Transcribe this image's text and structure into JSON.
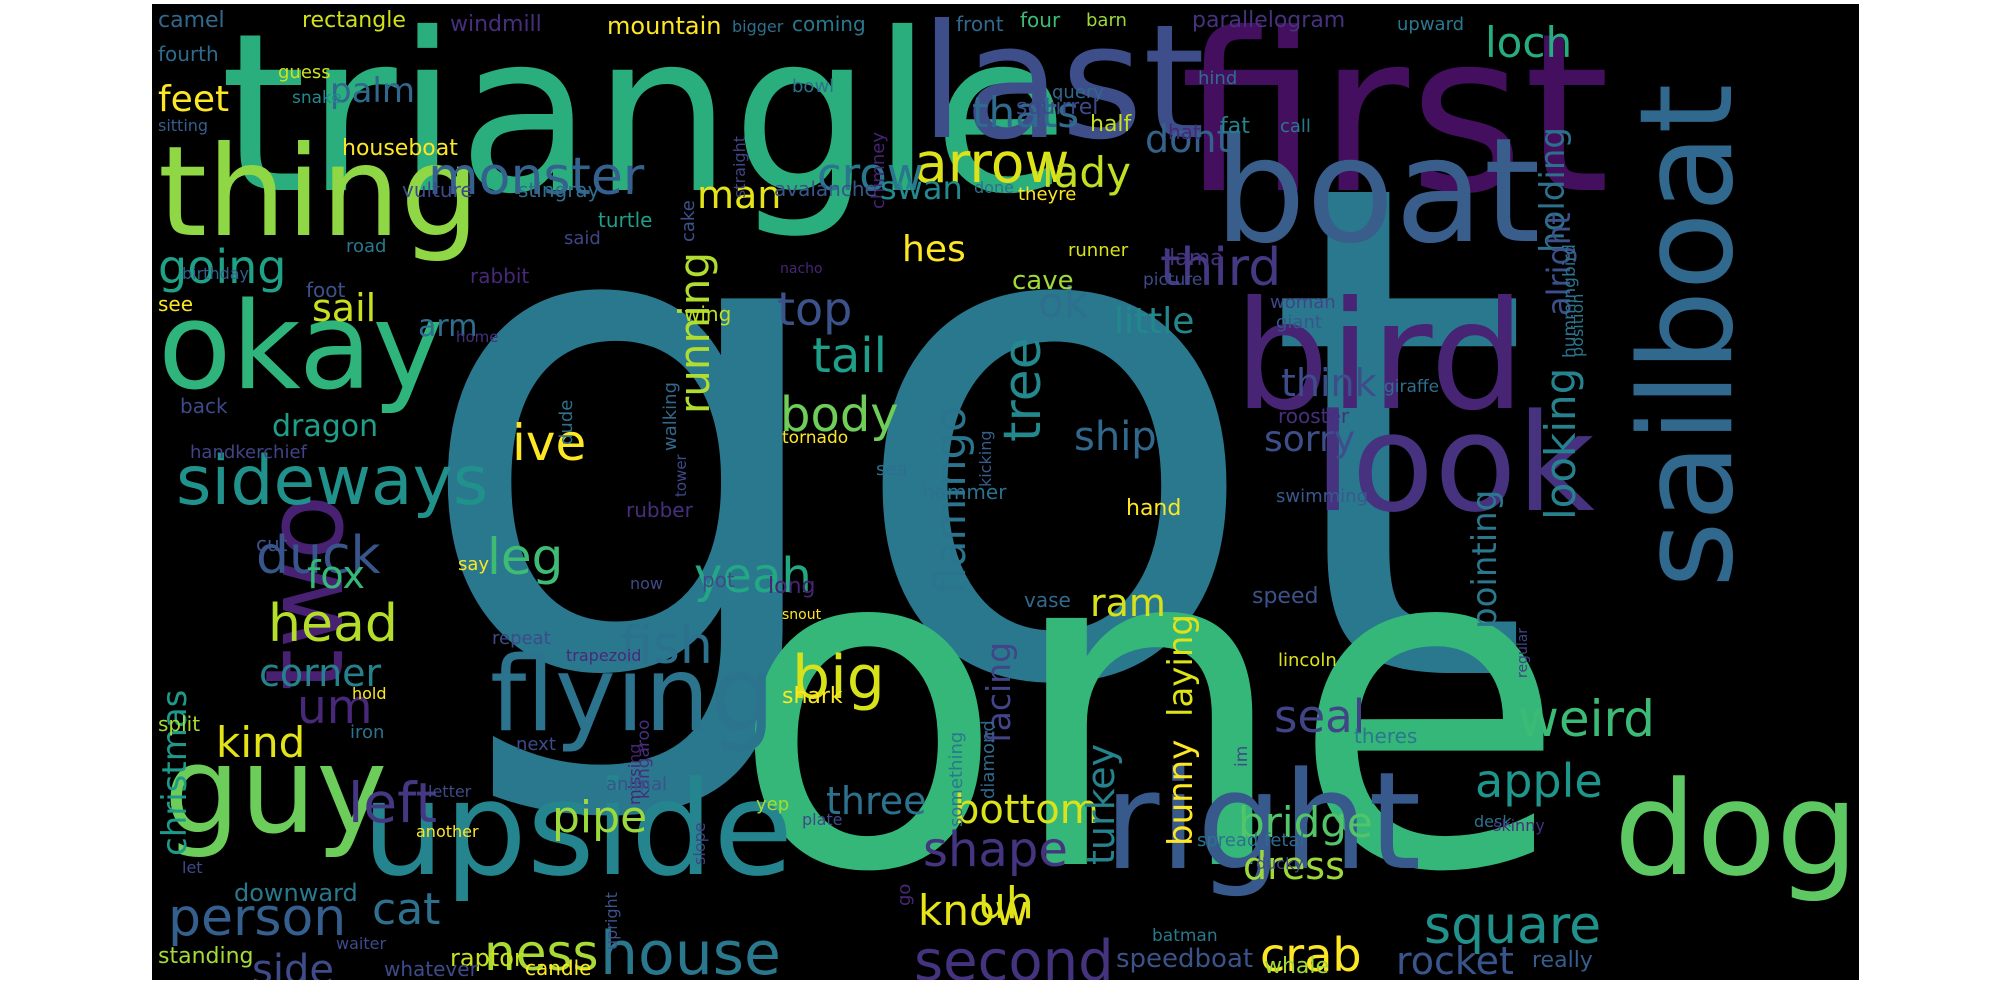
{
  "cloud": {
    "words": [
      {
        "text": "got",
        "color": "#2a788e"
      },
      {
        "text": "one",
        "color": "#35b779"
      },
      {
        "text": "triangle",
        "color": "#2bae7d"
      },
      {
        "text": "first",
        "color": "#440f5e"
      },
      {
        "text": "last",
        "color": "#3d4e8a"
      },
      {
        "text": "boat",
        "color": "#3a5e8c"
      },
      {
        "text": "bird",
        "color": "#482475"
      },
      {
        "text": "sailboat",
        "color": "#30688e"
      },
      {
        "text": "look",
        "color": "#46327e"
      },
      {
        "text": "thing",
        "color": "#8fd744"
      },
      {
        "text": "okay",
        "color": "#2fb47c"
      },
      {
        "text": "upside",
        "color": "#25858e"
      },
      {
        "text": "right",
        "color": "#38598c"
      },
      {
        "text": "dog",
        "color": "#5ec962"
      },
      {
        "text": "guy",
        "color": "#6ccd5a"
      },
      {
        "text": "flying",
        "color": "#2c738e"
      },
      {
        "text": "two",
        "color": "#482173"
      },
      {
        "text": "sideways",
        "color": "#21918c"
      },
      {
        "text": "monster",
        "color": "#34618d"
      },
      {
        "text": "arrow",
        "color": "#dde318"
      },
      {
        "text": "crow",
        "color": "#2a768e"
      },
      {
        "text": "thats",
        "color": "#2f6b8e"
      },
      {
        "text": "palm",
        "color": "#31688e"
      },
      {
        "text": "feet",
        "color": "#fde725"
      },
      {
        "text": "going",
        "color": "#1fa187"
      },
      {
        "text": "sail",
        "color": "#c8e020"
      },
      {
        "text": "duck",
        "color": "#39568c"
      },
      {
        "text": "head",
        "color": "#b5de2b"
      },
      {
        "text": "corner",
        "color": "#26818e"
      },
      {
        "text": "fox",
        "color": "#35b779"
      },
      {
        "text": "leg",
        "color": "#3fbc73"
      },
      {
        "text": "um",
        "color": "#482878"
      },
      {
        "text": "kind",
        "color": "#e2e418"
      },
      {
        "text": "left",
        "color": "#453882"
      },
      {
        "text": "person",
        "color": "#355f8d"
      },
      {
        "text": "house",
        "color": "#2a788e"
      },
      {
        "text": "ness",
        "color": "#a8db34"
      },
      {
        "text": "side",
        "color": "#3e4c8a"
      },
      {
        "text": "cat",
        "color": "#2d718e"
      },
      {
        "text": "pipe",
        "color": "#9bd93c"
      },
      {
        "text": "fish",
        "color": "#2c728e"
      },
      {
        "text": "yeah",
        "color": "#22a884"
      },
      {
        "text": "big",
        "color": "#d8e219"
      },
      {
        "text": "body",
        "color": "#6ece58"
      },
      {
        "text": "tail",
        "color": "#1f9e89"
      },
      {
        "text": "top",
        "color": "#3b528b"
      },
      {
        "text": "running",
        "color": "#b0dd2f"
      },
      {
        "text": "ive",
        "color": "#fde725"
      },
      {
        "text": "man",
        "color": "#e5e419"
      },
      {
        "text": "flamingo",
        "color": "#2b748e"
      },
      {
        "text": "tree",
        "color": "#23898e"
      },
      {
        "text": "ok",
        "color": "#2e6f8e"
      },
      {
        "text": "third",
        "color": "#443983"
      },
      {
        "text": "little",
        "color": "#23888e"
      },
      {
        "text": "think",
        "color": "#3d4d8a"
      },
      {
        "text": "sorry",
        "color": "#3d4e8a"
      },
      {
        "text": "ship",
        "color": "#31688e"
      },
      {
        "text": "lady",
        "color": "#c2df23"
      },
      {
        "text": "dont",
        "color": "#33638d"
      },
      {
        "text": "loch",
        "color": "#26ad81"
      },
      {
        "text": "holding",
        "color": "#2d708e"
      },
      {
        "text": "alright",
        "color": "#3c508b"
      },
      {
        "text": "looking",
        "color": "#26828e"
      },
      {
        "text": "pointing",
        "color": "#2a778e"
      },
      {
        "text": "weird",
        "color": "#3bbb75"
      },
      {
        "text": "seal",
        "color": "#414487"
      },
      {
        "text": "apple",
        "color": "#1f968b"
      },
      {
        "text": "square",
        "color": "#21918c"
      },
      {
        "text": "bridge",
        "color": "#52c569"
      },
      {
        "text": "dress",
        "color": "#9dd93b"
      },
      {
        "text": "rocket",
        "color": "#39568c"
      },
      {
        "text": "crab",
        "color": "#fde725"
      },
      {
        "text": "second",
        "color": "#46337f"
      },
      {
        "text": "shape",
        "color": "#453581"
      },
      {
        "text": "know",
        "color": "#e7e419"
      },
      {
        "text": "uh",
        "color": "#dde318"
      },
      {
        "text": "bottom",
        "color": "#dae319"
      },
      {
        "text": "three",
        "color": "#2c728e"
      },
      {
        "text": "ram",
        "color": "#d8e219"
      },
      {
        "text": "turkey",
        "color": "#26828e"
      },
      {
        "text": "bunny",
        "color": "#fde725"
      },
      {
        "text": "laying",
        "color": "#dde318"
      },
      {
        "text": "facing",
        "color": "#414487"
      },
      {
        "text": "hes",
        "color": "#fde725"
      },
      {
        "text": "cave",
        "color": "#a0da39"
      },
      {
        "text": "dragon",
        "color": "#1f9e89"
      },
      {
        "text": "christmas",
        "color": "#1f9a8a"
      },
      {
        "text": "arm",
        "color": "#2e6e8e"
      },
      {
        "text": "speedboat",
        "color": "#3b528b"
      },
      {
        "text": "candle",
        "color": "#fde725"
      },
      {
        "text": "raptor",
        "color": "#c8e020"
      },
      {
        "text": "standing",
        "color": "#a5db36"
      },
      {
        "text": "whale",
        "color": "#a0da39"
      },
      {
        "text": "really",
        "color": "#355e8d"
      },
      {
        "text": "whatever",
        "color": "#3e4a89"
      },
      {
        "text": "downward",
        "color": "#2a788e"
      },
      {
        "text": "camel",
        "color": "#31688e"
      },
      {
        "text": "rectangle",
        "color": "#d0e11c"
      },
      {
        "text": "windmill",
        "color": "#46307e"
      },
      {
        "text": "mountain",
        "color": "#fde725"
      },
      {
        "text": "bigger",
        "color": "#2e6e8e"
      },
      {
        "text": "coming",
        "color": "#2a778e"
      },
      {
        "text": "front",
        "color": "#31688e"
      },
      {
        "text": "four",
        "color": "#3fbc73"
      },
      {
        "text": "barn",
        "color": "#9bd93c"
      },
      {
        "text": "parallelogram",
        "color": "#46327e"
      },
      {
        "text": "upward",
        "color": "#2a788e"
      },
      {
        "text": "fourth",
        "color": "#2f6b8e"
      },
      {
        "text": "guess",
        "color": "#cde11d"
      },
      {
        "text": "snake",
        "color": "#23898e"
      },
      {
        "text": "bowl",
        "color": "#2c728e"
      },
      {
        "text": "chimney",
        "color": "#482374"
      },
      {
        "text": "query",
        "color": "#31688e"
      },
      {
        "text": "hind",
        "color": "#2e6e8e"
      },
      {
        "text": "sitting",
        "color": "#355e8d"
      },
      {
        "text": "straight",
        "color": "#414487"
      },
      {
        "text": "houseboat",
        "color": "#fde725"
      },
      {
        "text": "squirrel",
        "color": "#3e4989"
      },
      {
        "text": "half",
        "color": "#c5e021"
      },
      {
        "text": "hat",
        "color": "#482878"
      },
      {
        "text": "fat",
        "color": "#26828e"
      },
      {
        "text": "call",
        "color": "#2a788e"
      },
      {
        "text": "vulture",
        "color": "#3e4a89"
      },
      {
        "text": "stingray",
        "color": "#2e6f8e"
      },
      {
        "text": "cake",
        "color": "#3b528b"
      },
      {
        "text": "avalanche",
        "color": "#39568c"
      },
      {
        "text": "swan",
        "color": "#23898e"
      },
      {
        "text": "done",
        "color": "#2e6e8e"
      },
      {
        "text": "theyre",
        "color": "#fde725"
      },
      {
        "text": "turtle",
        "color": "#1f9e89"
      },
      {
        "text": "said",
        "color": "#404588"
      },
      {
        "text": "road",
        "color": "#2a788e"
      },
      {
        "text": "llama",
        "color": "#46327e"
      },
      {
        "text": "hummingbird",
        "color": "#2c728e"
      },
      {
        "text": "birthday",
        "color": "#355e8d"
      },
      {
        "text": "rabbit",
        "color": "#482878"
      },
      {
        "text": "foot",
        "color": "#3b528b"
      },
      {
        "text": "wing",
        "color": "#bddf26"
      },
      {
        "text": "nacho",
        "color": "#482475"
      },
      {
        "text": "runner",
        "color": "#d8e219"
      },
      {
        "text": "picture",
        "color": "#3e4a89"
      },
      {
        "text": "see",
        "color": "#fde725"
      },
      {
        "text": "home",
        "color": "#46307e"
      },
      {
        "text": "walking",
        "color": "#31688e"
      },
      {
        "text": "woman",
        "color": "#404588"
      },
      {
        "text": "giant",
        "color": "#39568c"
      },
      {
        "text": "position",
        "color": "#2a778e"
      },
      {
        "text": "giraffe",
        "color": "#2e6e8e"
      },
      {
        "text": "back",
        "color": "#3e4a89"
      },
      {
        "text": "dude",
        "color": "#2c728e"
      },
      {
        "text": "tornado",
        "color": "#fde725"
      },
      {
        "text": "rooster",
        "color": "#46307e"
      },
      {
        "text": "kicking",
        "color": "#355e8d"
      },
      {
        "text": "handkerchief",
        "color": "#414487"
      },
      {
        "text": "tower",
        "color": "#3e4a89"
      },
      {
        "text": "sea",
        "color": "#2e6f8e"
      },
      {
        "text": "hammer",
        "color": "#2c728e"
      },
      {
        "text": "swimming",
        "color": "#38598c"
      },
      {
        "text": "hand",
        "color": "#fde725"
      },
      {
        "text": "rubber",
        "color": "#46307e"
      },
      {
        "text": "cut",
        "color": "#3b528b"
      },
      {
        "text": "say",
        "color": "#fde725"
      },
      {
        "text": "now",
        "color": "#3e4a89"
      },
      {
        "text": "pot",
        "color": "#3e4a89"
      },
      {
        "text": "long",
        "color": "#482475"
      },
      {
        "text": "snout",
        "color": "#fde725"
      },
      {
        "text": "vase",
        "color": "#31688e"
      },
      {
        "text": "speed",
        "color": "#3b528b"
      },
      {
        "text": "regular",
        "color": "#404588"
      },
      {
        "text": "repeat",
        "color": "#3e4a89"
      },
      {
        "text": "trapezoid",
        "color": "#482878"
      },
      {
        "text": "lincoln",
        "color": "#dde318"
      },
      {
        "text": "kangaroo",
        "color": "#46307e"
      },
      {
        "text": "missing",
        "color": "#482475"
      },
      {
        "text": "shark",
        "color": "#fde725"
      },
      {
        "text": "something",
        "color": "#2a788e"
      },
      {
        "text": "diamond",
        "color": "#31688e"
      },
      {
        "text": "hold",
        "color": "#fde725"
      },
      {
        "text": "split",
        "color": "#a8db34"
      },
      {
        "text": "iron",
        "color": "#2c728e"
      },
      {
        "text": "im",
        "color": "#3e4a89"
      },
      {
        "text": "theres",
        "color": "#2a788e"
      },
      {
        "text": "next",
        "color": "#3e4a89"
      },
      {
        "text": "animal",
        "color": "#3b528b"
      },
      {
        "text": "letter",
        "color": "#3e4a89"
      },
      {
        "text": "yep",
        "color": "#a5db36"
      },
      {
        "text": "plate",
        "color": "#3e4a89"
      },
      {
        "text": "desk",
        "color": "#2c728e"
      },
      {
        "text": "skinny",
        "color": "#46307e"
      },
      {
        "text": "another",
        "color": "#fde725"
      },
      {
        "text": "slope",
        "color": "#404588"
      },
      {
        "text": "go",
        "color": "#482878"
      },
      {
        "text": "spread",
        "color": "#2c728e"
      },
      {
        "text": "fetal",
        "color": "#31688e"
      },
      {
        "text": "ducky",
        "color": "#3e4a89"
      },
      {
        "text": "let",
        "color": "#3e4a89"
      },
      {
        "text": "upright",
        "color": "#3b528b"
      },
      {
        "text": "waiter",
        "color": "#3e4a89"
      },
      {
        "text": "batman",
        "color": "#2a788e"
      }
    ]
  }
}
